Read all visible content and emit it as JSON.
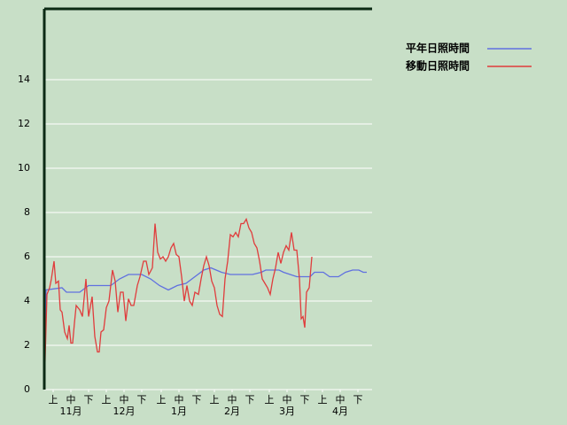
{
  "chart_data": {
    "type": "line",
    "xlim": [
      0,
      185
    ],
    "ylim": [
      0,
      17.2
    ],
    "yticks": [
      0,
      2,
      4,
      6,
      8,
      10,
      12,
      14
    ],
    "grid": true,
    "xticks": [
      {
        "value": 5,
        "label": "上"
      },
      {
        "value": 15,
        "label": "中"
      },
      {
        "value": 25,
        "label": "下"
      },
      {
        "value": 35,
        "label": "上"
      },
      {
        "value": 45,
        "label": "中"
      },
      {
        "value": 55,
        "label": "下"
      },
      {
        "value": 66,
        "label": "上"
      },
      {
        "value": 76,
        "label": "中"
      },
      {
        "value": 86,
        "label": "下"
      },
      {
        "value": 96,
        "label": "上"
      },
      {
        "value": 106,
        "label": "中"
      },
      {
        "value": 116,
        "label": "下"
      },
      {
        "value": 127,
        "label": "上"
      },
      {
        "value": 137,
        "label": "中"
      },
      {
        "value": 147,
        "label": "下"
      },
      {
        "value": 157,
        "label": "上"
      },
      {
        "value": 167,
        "label": "中"
      },
      {
        "value": 177,
        "label": "下"
      }
    ],
    "month_labels": [
      {
        "value": 15,
        "label": "11月"
      },
      {
        "value": 45,
        "label": "12月"
      },
      {
        "value": 76,
        "label": "1月"
      },
      {
        "value": 106,
        "label": "2月"
      },
      {
        "value": 137,
        "label": "3月"
      },
      {
        "value": 167,
        "label": "4月"
      }
    ],
    "series": [
      {
        "name": "平年日照時間",
        "color": "#6070e0",
        "x": [
          0,
          1,
          10,
          12.5,
          20,
          25,
          37.5,
          42.5,
          47.5,
          55,
          60,
          65,
          70,
          75,
          80,
          85,
          90,
          94,
          100,
          105,
          117.5,
          122.5,
          125,
          132.5,
          135,
          142.5,
          150,
          152.5,
          157.5,
          161,
          166,
          170,
          174,
          177.5,
          180,
          182
        ],
        "values": [
          0,
          4.5,
          4.6,
          4.4,
          4.4,
          4.7,
          4.7,
          5.0,
          5.2,
          5.2,
          5.0,
          4.7,
          4.5,
          4.7,
          4.8,
          5.1,
          5.4,
          5.5,
          5.3,
          5.2,
          5.2,
          5.3,
          5.4,
          5.4,
          5.3,
          5.1,
          5.1,
          5.3,
          5.3,
          5.1,
          5.1,
          5.3,
          5.4,
          5.4,
          5.3,
          5.3
        ]
      },
      {
        "name": "移動日照時間",
        "color": "#e03c3c",
        "x": [
          0,
          1.5,
          3,
          4,
          5.5,
          6.5,
          8,
          9,
          10,
          11.5,
          13,
          14,
          15,
          16,
          17,
          18,
          20,
          21.5,
          23.5,
          25,
          27,
          28.5,
          30,
          31,
          32,
          33.5,
          35,
          36.5,
          38.5,
          40,
          41.5,
          43,
          44.5,
          46,
          47.5,
          49,
          50.5,
          52.5,
          54,
          56,
          57.5,
          59,
          61,
          62.5,
          64,
          65.5,
          67,
          68.5,
          70,
          71.5,
          73,
          74.5,
          76,
          77.5,
          79,
          80.5,
          82,
          83.5,
          85,
          87,
          88.5,
          90,
          91.5,
          93,
          94.5,
          96,
          97.5,
          99,
          100.5,
          102,
          103.5,
          105,
          106.5,
          108,
          109.5,
          111,
          112.5,
          114,
          115.5,
          117,
          118.5,
          120,
          121.5,
          123,
          124.5,
          126,
          127.5,
          129,
          130.5,
          132,
          133.5,
          135,
          136.5,
          138,
          139.5,
          141,
          142.5,
          144,
          145,
          146,
          147,
          148,
          149.5,
          151
        ],
        "values": [
          0,
          4.3,
          4.6,
          5.0,
          5.8,
          4.8,
          4.9,
          3.6,
          3.5,
          2.6,
          2.3,
          2.9,
          2.1,
          2.1,
          3.0,
          3.8,
          3.6,
          3.3,
          5.0,
          3.3,
          4.2,
          2.4,
          1.7,
          1.7,
          2.6,
          2.7,
          3.7,
          4.0,
          5.4,
          4.9,
          3.5,
          4.4,
          4.4,
          3.1,
          4.1,
          3.8,
          3.8,
          4.7,
          5.1,
          5.8,
          5.8,
          5.2,
          5.5,
          7.5,
          6.2,
          5.9,
          6.0,
          5.8,
          6.0,
          6.4,
          6.6,
          6.1,
          6.0,
          5.1,
          4.0,
          4.7,
          4.0,
          3.8,
          4.4,
          4.3,
          5.0,
          5.6,
          6.0,
          5.6,
          4.9,
          4.6,
          3.8,
          3.4,
          3.3,
          5.0,
          5.8,
          7.0,
          6.9,
          7.1,
          6.9,
          7.5,
          7.5,
          7.7,
          7.3,
          7.1,
          6.6,
          6.4,
          5.8,
          5.0,
          4.8,
          4.6,
          4.3,
          5.0,
          5.5,
          6.2,
          5.7,
          6.2,
          6.5,
          6.3,
          7.1,
          6.3,
          6.3,
          5.0,
          3.2,
          3.3,
          2.8,
          4.4,
          4.6,
          6.0
        ]
      }
    ]
  }
}
